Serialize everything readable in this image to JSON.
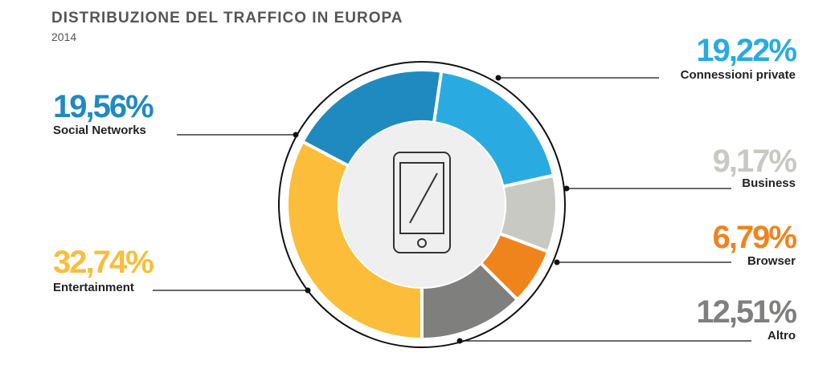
{
  "chart_data": {
    "type": "pie",
    "title": "DISTRIBUZIONE DEL TRAFFICO IN EUROPA",
    "subtitle": "2014",
    "categories": [
      "Connessioni private",
      "Business",
      "Browser",
      "Altro",
      "Entertainment",
      "Social Networks"
    ],
    "values": [
      19.22,
      9.17,
      6.79,
      12.51,
      32.74,
      19.56
    ],
    "value_labels": [
      "19,22%",
      "9,17%",
      "6,79%",
      "12,51%",
      "32,74%",
      "19,56%"
    ],
    "colors": [
      "#29abe2",
      "#c9c9c4",
      "#f0841c",
      "#7f7f7e",
      "#fbbd3a",
      "#1f8ac0"
    ]
  }
}
